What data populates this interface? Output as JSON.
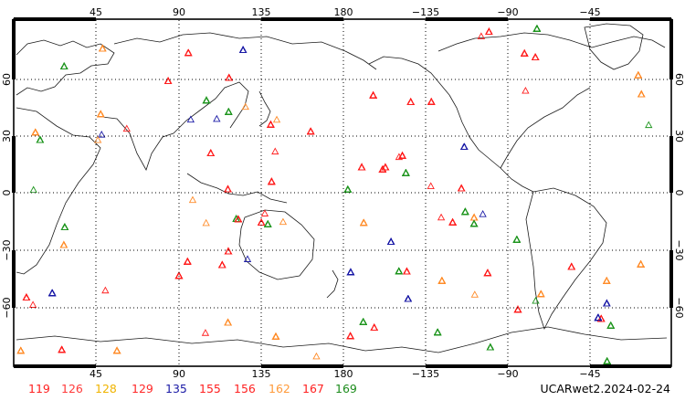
{
  "lon_ticks": [
    "45",
    "90",
    "135",
    "180",
    "−135",
    "−90",
    "−45"
  ],
  "lat_ticks": [
    "60",
    "30",
    "0",
    "−30",
    "−60"
  ],
  "legend": [
    {
      "label": "119",
      "color": "#ff2020"
    },
    {
      "label": "126",
      "color": "#ff3a3a"
    },
    {
      "label": "128",
      "color": "#f0b400"
    },
    {
      "label": "129",
      "color": "#ff2828"
    },
    {
      "label": "135",
      "color": "#1a1aa6"
    },
    {
      "label": "155",
      "color": "#ff2020"
    },
    {
      "label": "156",
      "color": "#ff2020"
    },
    {
      "label": "162",
      "color": "#ff9a3a"
    },
    {
      "label": "167",
      "color": "#ff2020"
    },
    {
      "label": "169",
      "color": "#1c8c1c"
    }
  ],
  "stamp": "UCARwet2.2024-02-24",
  "marker_palette": {
    "red": "#ff1e1e",
    "orange": "#ff8c2a",
    "green": "#1e951e",
    "blue": "#1a1aa6"
  }
}
